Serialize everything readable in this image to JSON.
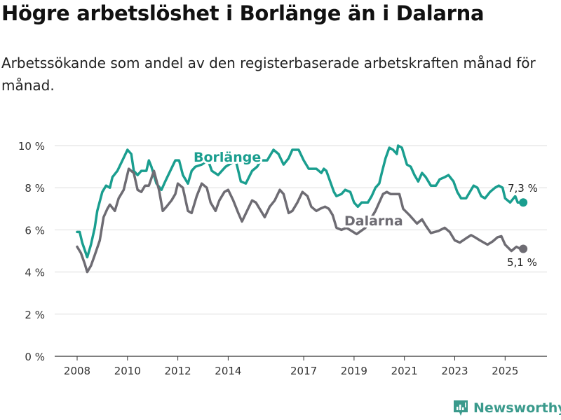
{
  "title": "Högre arbetslöshet i Borlänge än i Dalarna",
  "subtitle": "Arbetssökande som andel av den registerbaserade arbetskraften månad för månad.",
  "brand": "Newsworthy",
  "chart_data": {
    "type": "line",
    "title": "Högre arbetslöshet i Borlänge än i Dalarna",
    "xlabel": "",
    "ylabel": "",
    "ylim": [
      0,
      10
    ],
    "xlim": [
      2007.0,
      2026.8
    ],
    "y_ticks": [
      0,
      2,
      4,
      6,
      8,
      10
    ],
    "y_tick_labels": [
      "0 %",
      "2 %",
      "4 %",
      "6 %",
      "8 %",
      "10 %"
    ],
    "x_ticks": [
      2008,
      2010,
      2012,
      2014,
      2017,
      2019,
      2021,
      2023,
      2025
    ],
    "x_tick_labels": [
      "2008",
      "2010",
      "2012",
      "2014",
      "2017",
      "2019",
      "2021",
      "2023",
      "2025"
    ],
    "grid": true,
    "series": [
      {
        "name": "Borlänge",
        "color": "#1a9e8f",
        "end_label": "7,3 %",
        "points": [
          [
            2008.0,
            5.9
          ],
          [
            2008.1,
            5.9
          ],
          [
            2008.2,
            5.4
          ],
          [
            2008.4,
            4.7
          ],
          [
            2008.55,
            5.3
          ],
          [
            2008.7,
            6.1
          ],
          [
            2008.8,
            6.9
          ],
          [
            2009.0,
            7.8
          ],
          [
            2009.15,
            8.1
          ],
          [
            2009.3,
            8.0
          ],
          [
            2009.4,
            8.5
          ],
          [
            2009.6,
            8.8
          ],
          [
            2009.8,
            9.3
          ],
          [
            2010.0,
            9.8
          ],
          [
            2010.15,
            9.6
          ],
          [
            2010.25,
            8.8
          ],
          [
            2010.4,
            8.6
          ],
          [
            2010.55,
            8.8
          ],
          [
            2010.75,
            8.8
          ],
          [
            2010.85,
            9.3
          ],
          [
            2010.95,
            9.0
          ],
          [
            2011.15,
            8.2
          ],
          [
            2011.35,
            7.9
          ],
          [
            2011.5,
            8.3
          ],
          [
            2011.7,
            8.8
          ],
          [
            2011.9,
            9.3
          ],
          [
            2012.05,
            9.3
          ],
          [
            2012.2,
            8.6
          ],
          [
            2012.4,
            8.2
          ],
          [
            2012.55,
            8.8
          ],
          [
            2012.7,
            9.0
          ],
          [
            2012.95,
            9.1
          ],
          [
            2013.2,
            9.3
          ],
          [
            2013.35,
            8.8
          ],
          [
            2013.6,
            8.6
          ],
          [
            2013.9,
            9.0
          ],
          [
            2014.3,
            9.3
          ],
          [
            2014.5,
            8.3
          ],
          [
            2014.7,
            8.2
          ],
          [
            2014.95,
            8.8
          ],
          [
            2015.15,
            9.0
          ],
          [
            2015.3,
            9.3
          ],
          [
            2015.55,
            9.3
          ],
          [
            2015.8,
            9.8
          ],
          [
            2016.0,
            9.6
          ],
          [
            2016.2,
            9.1
          ],
          [
            2016.4,
            9.4
          ],
          [
            2016.55,
            9.8
          ],
          [
            2016.8,
            9.8
          ],
          [
            2017.0,
            9.3
          ],
          [
            2017.2,
            8.9
          ],
          [
            2017.5,
            8.9
          ],
          [
            2017.7,
            8.7
          ],
          [
            2017.8,
            8.9
          ],
          [
            2017.9,
            8.8
          ],
          [
            2018.05,
            8.3
          ],
          [
            2018.2,
            7.8
          ],
          [
            2018.3,
            7.6
          ],
          [
            2018.5,
            7.7
          ],
          [
            2018.65,
            7.9
          ],
          [
            2018.85,
            7.8
          ],
          [
            2019.0,
            7.3
          ],
          [
            2019.15,
            7.1
          ],
          [
            2019.3,
            7.3
          ],
          [
            2019.55,
            7.3
          ],
          [
            2019.7,
            7.6
          ],
          [
            2019.85,
            8.0
          ],
          [
            2020.0,
            8.2
          ],
          [
            2020.1,
            8.7
          ],
          [
            2020.25,
            9.4
          ],
          [
            2020.4,
            9.9
          ],
          [
            2020.55,
            9.8
          ],
          [
            2020.7,
            9.6
          ],
          [
            2020.75,
            10.0
          ],
          [
            2020.9,
            9.9
          ],
          [
            2021.1,
            9.1
          ],
          [
            2021.25,
            9.0
          ],
          [
            2021.4,
            8.6
          ],
          [
            2021.55,
            8.3
          ],
          [
            2021.7,
            8.7
          ],
          [
            2021.85,
            8.5
          ],
          [
            2022.05,
            8.1
          ],
          [
            2022.25,
            8.1
          ],
          [
            2022.4,
            8.4
          ],
          [
            2022.6,
            8.5
          ],
          [
            2022.75,
            8.6
          ],
          [
            2022.95,
            8.3
          ],
          [
            2023.1,
            7.8
          ],
          [
            2023.25,
            7.5
          ],
          [
            2023.45,
            7.5
          ],
          [
            2023.6,
            7.8
          ],
          [
            2023.75,
            8.1
          ],
          [
            2023.9,
            8.0
          ],
          [
            2024.05,
            7.6
          ],
          [
            2024.2,
            7.5
          ],
          [
            2024.4,
            7.8
          ],
          [
            2024.6,
            8.0
          ],
          [
            2024.75,
            8.1
          ],
          [
            2024.9,
            8.0
          ],
          [
            2025.0,
            7.5
          ],
          [
            2025.2,
            7.3
          ],
          [
            2025.4,
            7.6
          ],
          [
            2025.5,
            7.3
          ],
          [
            2025.72,
            7.3
          ]
        ]
      },
      {
        "name": "Dalarna",
        "color": "#6e6c73",
        "end_label": "5,1 %",
        "points": [
          [
            2008.0,
            5.2
          ],
          [
            2008.15,
            4.9
          ],
          [
            2008.3,
            4.4
          ],
          [
            2008.4,
            4.0
          ],
          [
            2008.55,
            4.3
          ],
          [
            2008.7,
            4.8
          ],
          [
            2008.9,
            5.5
          ],
          [
            2009.05,
            6.6
          ],
          [
            2009.2,
            7.0
          ],
          [
            2009.3,
            7.2
          ],
          [
            2009.5,
            6.9
          ],
          [
            2009.65,
            7.5
          ],
          [
            2009.85,
            7.9
          ],
          [
            2010.05,
            8.9
          ],
          [
            2010.25,
            8.7
          ],
          [
            2010.4,
            7.9
          ],
          [
            2010.55,
            7.8
          ],
          [
            2010.7,
            8.1
          ],
          [
            2010.85,
            8.1
          ],
          [
            2011.05,
            8.8
          ],
          [
            2011.25,
            7.9
          ],
          [
            2011.4,
            6.9
          ],
          [
            2011.55,
            7.1
          ],
          [
            2011.75,
            7.4
          ],
          [
            2011.9,
            7.7
          ],
          [
            2012.0,
            8.2
          ],
          [
            2012.2,
            8.0
          ],
          [
            2012.4,
            6.9
          ],
          [
            2012.55,
            6.8
          ],
          [
            2012.75,
            7.6
          ],
          [
            2012.95,
            8.2
          ],
          [
            2013.15,
            8.0
          ],
          [
            2013.3,
            7.3
          ],
          [
            2013.5,
            6.9
          ],
          [
            2013.65,
            7.4
          ],
          [
            2013.85,
            7.8
          ],
          [
            2014.0,
            7.9
          ],
          [
            2014.2,
            7.4
          ],
          [
            2014.4,
            6.8
          ],
          [
            2014.55,
            6.4
          ],
          [
            2014.75,
            6.9
          ],
          [
            2014.95,
            7.4
          ],
          [
            2015.1,
            7.3
          ],
          [
            2015.45,
            6.6
          ],
          [
            2015.65,
            7.1
          ],
          [
            2015.85,
            7.4
          ],
          [
            2016.05,
            7.9
          ],
          [
            2016.2,
            7.7
          ],
          [
            2016.4,
            6.8
          ],
          [
            2016.55,
            6.9
          ],
          [
            2016.75,
            7.3
          ],
          [
            2016.95,
            7.8
          ],
          [
            2017.15,
            7.6
          ],
          [
            2017.3,
            7.1
          ],
          [
            2017.5,
            6.9
          ],
          [
            2017.65,
            7.0
          ],
          [
            2017.85,
            7.1
          ],
          [
            2018.0,
            7.0
          ],
          [
            2018.15,
            6.7
          ],
          [
            2018.3,
            6.1
          ],
          [
            2018.5,
            6.0
          ],
          [
            2018.7,
            6.1
          ],
          [
            2019.1,
            5.8
          ],
          [
            2019.45,
            6.1
          ],
          [
            2019.85,
            6.9
          ],
          [
            2020.15,
            7.7
          ],
          [
            2020.3,
            7.8
          ],
          [
            2020.45,
            7.7
          ],
          [
            2020.6,
            7.7
          ],
          [
            2020.8,
            7.7
          ],
          [
            2020.95,
            7.0
          ],
          [
            2021.2,
            6.7
          ],
          [
            2021.5,
            6.3
          ],
          [
            2021.7,
            6.5
          ],
          [
            2021.85,
            6.2
          ],
          [
            2022.05,
            5.85
          ],
          [
            2022.35,
            5.95
          ],
          [
            2022.6,
            6.1
          ],
          [
            2022.8,
            5.9
          ],
          [
            2023.0,
            5.5
          ],
          [
            2023.2,
            5.4
          ],
          [
            2023.45,
            5.6
          ],
          [
            2023.65,
            5.75
          ],
          [
            2023.8,
            5.65
          ],
          [
            2024.0,
            5.5
          ],
          [
            2024.3,
            5.3
          ],
          [
            2024.5,
            5.45
          ],
          [
            2024.7,
            5.65
          ],
          [
            2024.85,
            5.7
          ],
          [
            2025.0,
            5.3
          ],
          [
            2025.25,
            5.0
          ],
          [
            2025.45,
            5.2
          ],
          [
            2025.6,
            5.1
          ],
          [
            2025.72,
            5.1
          ]
        ]
      }
    ]
  }
}
